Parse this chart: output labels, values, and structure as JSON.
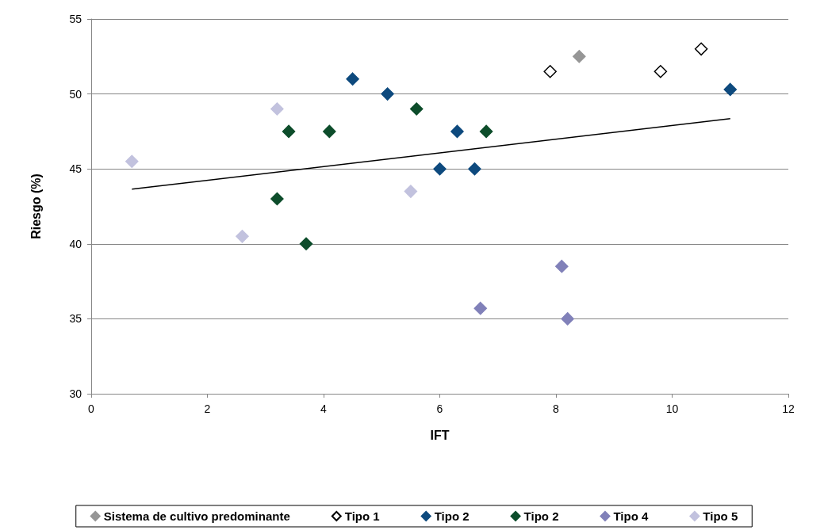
{
  "chart_data": {
    "type": "scatter",
    "xlabel": "IFT",
    "ylabel": "Riesgo (%)",
    "xlim": [
      0,
      12
    ],
    "xticks": [
      0,
      2,
      4,
      6,
      8,
      10,
      12
    ],
    "ylim": [
      30,
      55
    ],
    "yticks": [
      30,
      35,
      40,
      45,
      50,
      55
    ],
    "grid": "y",
    "legend": "bottom",
    "series": [
      {
        "name": "Sistema de cultivo predominante",
        "marker": "diamond",
        "color": "#969696",
        "x": [
          8.4
        ],
        "values": [
          52.5
        ]
      },
      {
        "name": "Tipo 1",
        "marker": "diamond",
        "color": "#ffffff",
        "x": [
          7.9,
          9.8,
          10.5
        ],
        "values": [
          51.5,
          51.5,
          53.0
        ]
      },
      {
        "name": "Tipo 2",
        "marker": "diamond",
        "color": "#0e4a7e",
        "x": [
          4.5,
          5.1,
          6.3,
          6.0,
          6.6,
          11.0
        ],
        "values": [
          51.0,
          50.0,
          47.5,
          45.0,
          45.0,
          50.3
        ]
      },
      {
        "name": "Tipo 2",
        "marker": "diamond",
        "color": "#0d4d2b",
        "x": [
          3.4,
          4.1,
          5.6,
          6.8,
          3.2,
          3.7
        ],
        "values": [
          47.5,
          47.5,
          49.0,
          47.5,
          43.0,
          40.0
        ]
      },
      {
        "name": "Tipo 4",
        "marker": "diamond",
        "color": "#8181b9",
        "x": [
          8.1,
          8.2,
          6.7
        ],
        "values": [
          38.5,
          35.0,
          35.7
        ]
      },
      {
        "name": "Tipo 5",
        "marker": "diamond",
        "color": "#c2c2de",
        "x": [
          0.7,
          3.2,
          2.6,
          5.5
        ],
        "values": [
          45.5,
          49.0,
          40.5,
          43.5
        ]
      },
      {
        "type": "line",
        "marker": "none",
        "color": "#000000",
        "x": [
          0.7,
          11.0
        ],
        "values": [
          43.65,
          48.35
        ]
      }
    ]
  }
}
